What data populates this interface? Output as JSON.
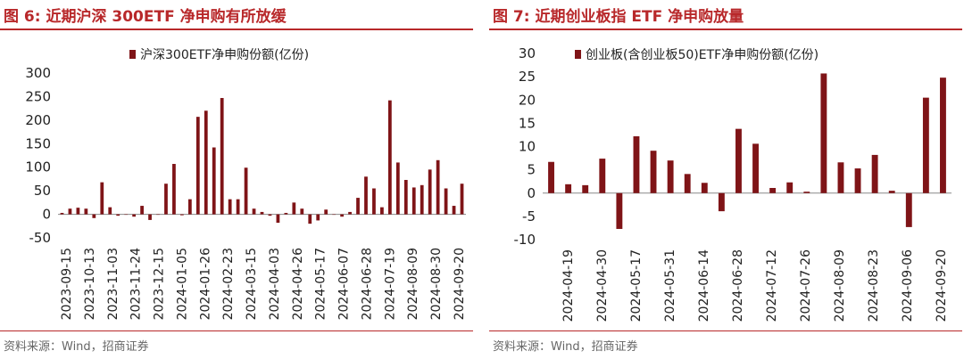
{
  "colors": {
    "accent": "#b8282a",
    "bar": "#7f1417"
  },
  "left": {
    "title": "图 6:  近期沪深 300ETF 净申购有所放缓",
    "source": "资料来源：Wind，招商证券"
  },
  "right": {
    "title": "图 7:  近期创业板指 ETF 净申购放量",
    "source": "资料来源：Wind，招商证券"
  },
  "chart_data": [
    {
      "type": "bar",
      "legend": "沪深300ETF净申购份额(亿份)",
      "ylim": [
        -50,
        300
      ],
      "yticks": [
        -50,
        0,
        50,
        100,
        150,
        200,
        250,
        300
      ],
      "xtick_labels": [
        "2023-09-15",
        "2023-10-13",
        "2023-11-03",
        "2023-11-24",
        "2023-12-15",
        "2024-01-05",
        "2024-01-26",
        "2024-02-23",
        "2024-03-15",
        "2024-04-03",
        "2024-04-26",
        "2024-05-17",
        "2024-06-07",
        "2024-06-28",
        "2024-07-19",
        "2024-08-09",
        "2024-08-30",
        "2024-09-20"
      ],
      "values": [
        3,
        12,
        14,
        12,
        -8,
        68,
        15,
        -3,
        0,
        -5,
        18,
        -12,
        0,
        65,
        107,
        -2,
        32,
        207,
        220,
        142,
        247,
        32,
        32,
        99,
        12,
        5,
        -3,
        -18,
        3,
        25,
        12,
        -20,
        -13,
        10,
        0,
        -5,
        5,
        35,
        80,
        55,
        15,
        242,
        110,
        73,
        57,
        62,
        95,
        115,
        55,
        18,
        65
      ]
    },
    {
      "type": "bar",
      "legend": "创业板(含创业板50)ETF净申购份额(亿份)",
      "ylim": [
        -10,
        30
      ],
      "yticks": [
        -10,
        -5,
        0,
        5,
        10,
        15,
        20,
        25,
        30
      ],
      "xtick_labels": [
        "2024-04-19",
        "2024-04-30",
        "2024-05-17",
        "2024-05-31",
        "2024-06-14",
        "2024-06-28",
        "2024-07-12",
        "2024-07-26",
        "2024-08-09",
        "2024-08-23",
        "2024-09-06",
        "2024-09-20"
      ],
      "values": [
        6.7,
        1.9,
        1.7,
        7.4,
        -7.7,
        12.2,
        9.1,
        7.0,
        4.1,
        2.2,
        -3.9,
        13.8,
        10.6,
        1.1,
        2.3,
        0.3,
        25.7,
        6.6,
        5.3,
        8.2,
        0.5,
        -7.3,
        20.5,
        24.8
      ]
    }
  ]
}
